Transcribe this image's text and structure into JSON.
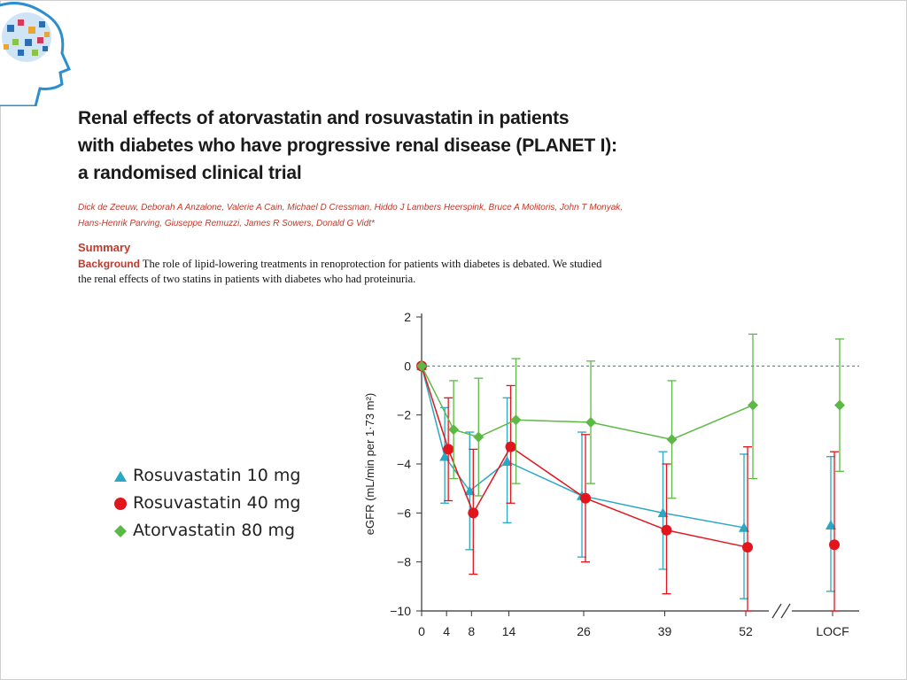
{
  "paper": {
    "title_lines": [
      "Renal effects of atorvastatin and rosuvastatin in patients",
      "with diabetes who have progressive renal disease (PLANET I):",
      "a randomised clinical trial"
    ],
    "author_lines": [
      "Dick de Zeeuw, Deborah A Anzalone, Valerie A Cain, Michael D Cressman, Hiddo J Lambers Heerspink, Bruce A Molitoris, John T Monyak,",
      "Hans-Henrik Parving, Giuseppe Remuzzi, James R Sowers, Donald G Vidt*"
    ],
    "summary_heading": "Summary",
    "background_label": "Background",
    "background_line1": "The role of lipid-lowering treatments in renoprotection for patients with diabetes is debated. We studied",
    "background_line2": "the renal effects of two statins in patients with diabetes who had proteinuria."
  },
  "logo_icon": "brain-head-icon",
  "chart_data": {
    "type": "line",
    "ylabel": "eGFR (mL/min per 1·73 m²)",
    "ylim": [
      -10,
      2
    ],
    "yticks": [
      2,
      0,
      -2,
      -4,
      -6,
      -8,
      -10
    ],
    "ytick_labels": [
      "2",
      "0",
      "−2",
      "−4",
      "−6",
      "−8",
      "−10"
    ],
    "x": [
      0,
      4,
      8,
      14,
      26,
      39,
      52,
      "LOCF"
    ],
    "xtick_labels": [
      "0",
      "4",
      "8",
      "14",
      "26",
      "39",
      "52",
      "LOCF"
    ],
    "reference_line": 0,
    "axis_break": "between 52 and LOCF",
    "series": [
      {
        "name": "Rosuvastatin 10 mg",
        "marker": "triangle",
        "color": "#2aa7c4",
        "values": [
          0,
          -3.7,
          -5.1,
          -3.9,
          -5.3,
          -6.0,
          -6.6,
          -6.5
        ],
        "ci_low": [
          0,
          -5.6,
          -7.5,
          -6.4,
          -7.8,
          -8.3,
          -9.5,
          -9.2
        ],
        "ci_high": [
          0,
          -1.7,
          -2.7,
          -1.3,
          -2.7,
          -3.5,
          -3.6,
          -3.7
        ]
      },
      {
        "name": "Rosuvastatin 40 mg",
        "marker": "circle",
        "color": "#e3151c",
        "values": [
          0,
          -3.4,
          -6.0,
          -3.3,
          -5.4,
          -6.7,
          -7.4,
          -7.3
        ],
        "ci_low": [
          0,
          -5.5,
          -8.5,
          -5.6,
          -8.0,
          -9.3,
          -10,
          -10
        ],
        "ci_high": [
          0,
          -1.3,
          -3.4,
          -0.8,
          -2.8,
          -4.0,
          -3.3,
          -3.5
        ]
      },
      {
        "name": "Atorvastatin 80 mg",
        "marker": "diamond",
        "color": "#5cb946",
        "values": [
          0,
          -2.6,
          -2.9,
          -2.2,
          -2.3,
          -3.0,
          -1.6,
          -1.6
        ],
        "ci_low": [
          0,
          -4.6,
          -5.3,
          -4.8,
          -4.8,
          -5.4,
          -4.6,
          -4.3
        ],
        "ci_high": [
          0,
          -0.6,
          -0.5,
          0.3,
          0.2,
          -0.6,
          1.3,
          1.1
        ]
      }
    ]
  }
}
